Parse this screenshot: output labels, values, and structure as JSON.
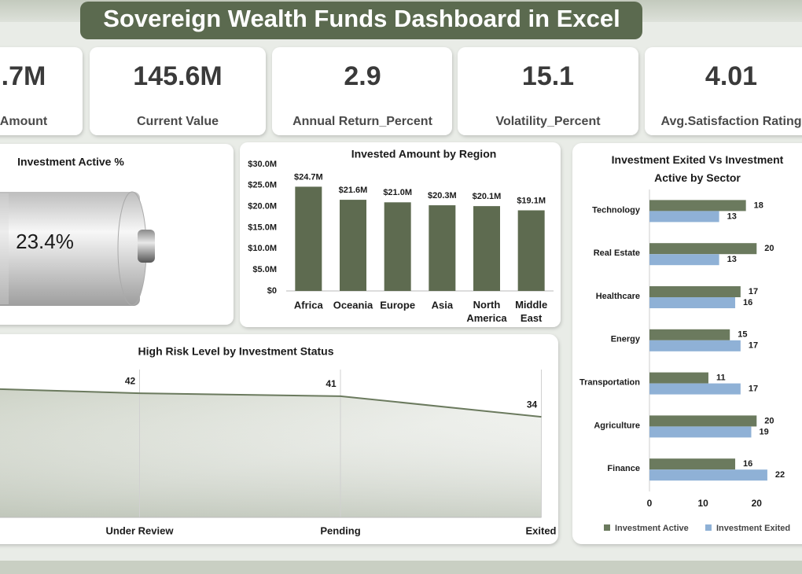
{
  "header": {
    "title": "Sovereign Wealth Funds Dashboard in Excel"
  },
  "kpis": [
    {
      "value": ".7M",
      "label": "Amount"
    },
    {
      "value": "145.6M",
      "label": "Current Value"
    },
    {
      "value": "2.9",
      "label": "Annual Return_Percent"
    },
    {
      "value": "15.1",
      "label": "Volatility_Percent"
    },
    {
      "value": "4.01",
      "label": "Avg.Satisfaction Rating"
    }
  ],
  "chart_data": [
    {
      "type": "battery",
      "title": "Investment  Active %",
      "value": 23.4,
      "value_label": "23.4%",
      "color": "#d9d9d9"
    },
    {
      "type": "bar",
      "title": "Invested Amount by Region",
      "categories": [
        "Africa",
        "Oceania",
        "Europe",
        "Asia",
        "North America",
        "Middle East"
      ],
      "values": [
        24.7,
        21.6,
        21.0,
        20.3,
        20.1,
        19.1
      ],
      "value_labels": [
        "$24.7M",
        "$21.6M",
        "$21.0M",
        "$20.3M",
        "$20.1M",
        "$19.1M"
      ],
      "color": "#5e6b50",
      "ylim": [
        0,
        30
      ],
      "yticks": [
        {
          "value": 0,
          "label": "$0"
        },
        {
          "value": 5,
          "label": "$5.0M"
        },
        {
          "value": 10,
          "label": "$10.0M"
        },
        {
          "value": 15,
          "label": "$15.0M"
        },
        {
          "value": 20,
          "label": "$20.0M"
        },
        {
          "value": 25,
          "label": "$25.0M"
        },
        {
          "value": 30,
          "label": "$30.0M"
        }
      ]
    },
    {
      "type": "area",
      "title": "High Risk Level by Investment Status",
      "categories": [
        null,
        "Under Review",
        "Pending",
        "Exited"
      ],
      "values": [
        44,
        42,
        41,
        34
      ],
      "color": "#6b7a5e",
      "ylim": [
        0,
        50
      ]
    },
    {
      "type": "hbar",
      "title": "Investment Exited Vs Investment Active by Sector",
      "categories": [
        "Technology",
        "Real Estate",
        "Healthcare",
        "Energy",
        "Transportation",
        "Agriculture",
        "Finance"
      ],
      "series": [
        {
          "name": "Investment  Active",
          "color": "#6b7a5e",
          "values": [
            18,
            20,
            17,
            15,
            11,
            20,
            16
          ]
        },
        {
          "name": "Investment  Exited",
          "color": "#8fb1d6",
          "values": [
            13,
            13,
            16,
            17,
            17,
            19,
            22
          ]
        }
      ],
      "xlim": [
        0,
        27
      ],
      "xticks": [
        0,
        10,
        20
      ],
      "legend": "bottom"
    }
  ]
}
